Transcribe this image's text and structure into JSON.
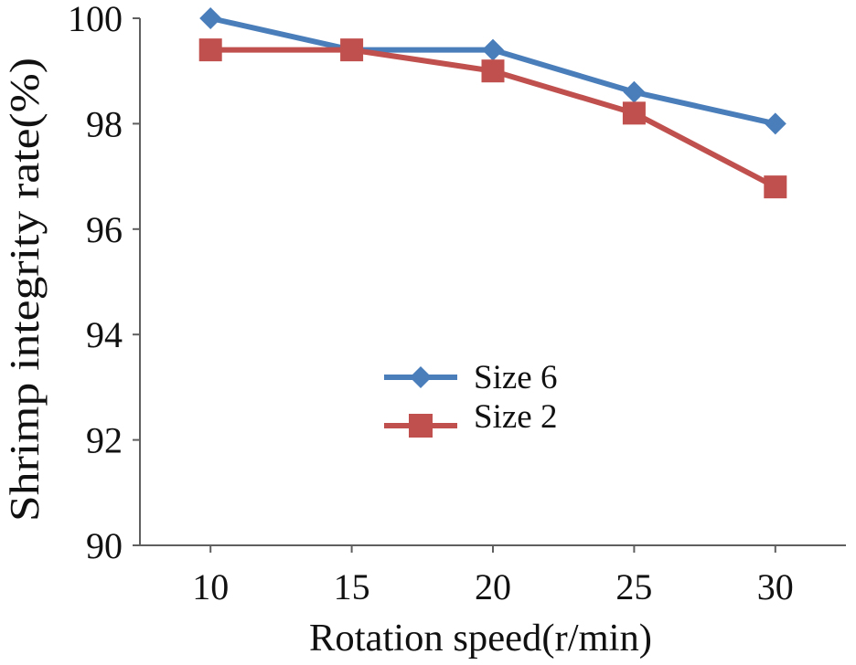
{
  "chart_data": {
    "type": "line",
    "xlabel": "Rotation speed(r/min)",
    "ylabel": "Shrimp integrity rate(%)",
    "categories": [
      10,
      15,
      20,
      25,
      30
    ],
    "ylim": [
      90,
      100
    ],
    "yticks": [
      90,
      92,
      94,
      96,
      98,
      100
    ],
    "grid": false,
    "legend_position": "center",
    "series": [
      {
        "name": "Size 6",
        "marker": "diamond",
        "color": "#4A7EBB",
        "values": [
          100,
          99.4,
          99.4,
          98.6,
          98.0
        ]
      },
      {
        "name": "Size 2",
        "marker": "square",
        "color": "#C0504D",
        "values": [
          99.4,
          99.4,
          99.0,
          98.2,
          96.8
        ]
      }
    ]
  }
}
